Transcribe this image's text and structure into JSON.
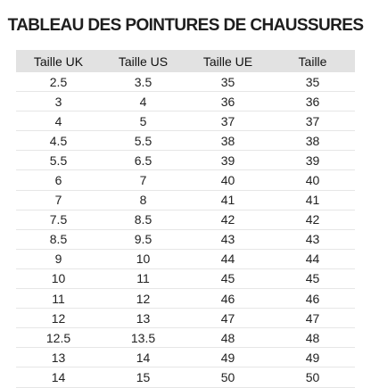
{
  "title": "TABLEAU DES POINTURES DE CHAUSSURES",
  "table": {
    "headers": [
      "Taille UK",
      "Taille US",
      "Taille UE",
      "Taille"
    ],
    "rows": [
      [
        2.5,
        3.5,
        35,
        35
      ],
      [
        3,
        4,
        36,
        36
      ],
      [
        4,
        5,
        37,
        37
      ],
      [
        4.5,
        5.5,
        38,
        38
      ],
      [
        5.5,
        6.5,
        39,
        39
      ],
      [
        6,
        7,
        40,
        40
      ],
      [
        7,
        8,
        41,
        41
      ],
      [
        7.5,
        8.5,
        42,
        42
      ],
      [
        8.5,
        9.5,
        43,
        43
      ],
      [
        9,
        10,
        44,
        44
      ],
      [
        10,
        11,
        45,
        45
      ],
      [
        11,
        12,
        46,
        46
      ],
      [
        12,
        13,
        47,
        47
      ],
      [
        12.5,
        13.5,
        48,
        48
      ],
      [
        13,
        14,
        49,
        49
      ],
      [
        14,
        15,
        50,
        50
      ]
    ]
  }
}
